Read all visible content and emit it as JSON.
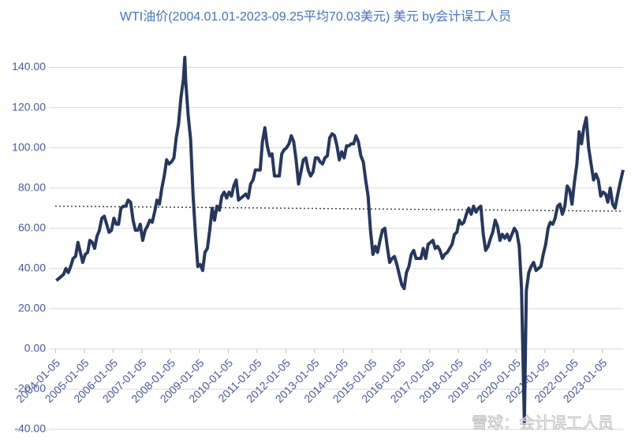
{
  "chart_data": {
    "type": "line",
    "title": "WTI油价(2004.01.01-2023-09.25平均70.03美元) 美元   by会计误工人员",
    "watermark": "雪球：会计误工人员",
    "x": [
      "2004-01",
      "2004-02",
      "2004-03",
      "2004-04",
      "2004-05",
      "2004-06",
      "2004-07",
      "2004-08",
      "2004-09",
      "2004-10",
      "2004-11",
      "2004-12",
      "2005-01",
      "2005-02",
      "2005-03",
      "2005-04",
      "2005-05",
      "2005-06",
      "2005-07",
      "2005-08",
      "2005-09",
      "2005-10",
      "2005-11",
      "2005-12",
      "2006-01",
      "2006-02",
      "2006-03",
      "2006-04",
      "2006-05",
      "2006-06",
      "2006-07",
      "2006-08",
      "2006-09",
      "2006-10",
      "2006-11",
      "2006-12",
      "2007-01",
      "2007-02",
      "2007-03",
      "2007-04",
      "2007-05",
      "2007-06",
      "2007-07",
      "2007-08",
      "2007-09",
      "2007-10",
      "2007-11",
      "2007-12",
      "2008-01",
      "2008-02",
      "2008-03",
      "2008-04",
      "2008-05",
      "2008-06",
      "2008-07-03",
      "2008-07",
      "2008-08",
      "2008-09",
      "2008-10",
      "2008-11",
      "2008-12",
      "2009-01",
      "2009-02",
      "2009-03",
      "2009-04",
      "2009-05",
      "2009-06",
      "2009-07",
      "2009-08",
      "2009-09",
      "2009-10",
      "2009-11",
      "2009-12",
      "2010-01",
      "2010-02",
      "2010-03",
      "2010-04",
      "2010-05",
      "2010-06",
      "2010-07",
      "2010-08",
      "2010-09",
      "2010-10",
      "2010-11",
      "2010-12",
      "2011-01",
      "2011-02",
      "2011-03",
      "2011-04",
      "2011-05",
      "2011-06",
      "2011-07",
      "2011-08",
      "2011-09",
      "2011-10",
      "2011-11",
      "2011-12",
      "2012-01",
      "2012-02",
      "2012-03",
      "2012-04",
      "2012-05",
      "2012-06",
      "2012-07",
      "2012-08",
      "2012-09",
      "2012-10",
      "2012-11",
      "2012-12",
      "2013-01",
      "2013-02",
      "2013-03",
      "2013-04",
      "2013-05",
      "2013-06",
      "2013-07",
      "2013-08",
      "2013-09",
      "2013-10",
      "2013-11",
      "2013-12",
      "2014-01",
      "2014-02",
      "2014-03",
      "2014-04",
      "2014-05",
      "2014-06",
      "2014-07",
      "2014-08",
      "2014-09",
      "2014-10",
      "2014-11",
      "2014-12",
      "2015-01",
      "2015-02",
      "2015-03",
      "2015-04",
      "2015-05",
      "2015-06",
      "2015-07",
      "2015-08",
      "2015-09",
      "2015-10",
      "2015-11",
      "2015-12",
      "2016-01",
      "2016-02",
      "2016-03",
      "2016-04",
      "2016-05",
      "2016-06",
      "2016-07",
      "2016-08",
      "2016-09",
      "2016-10",
      "2016-11",
      "2016-12",
      "2017-01",
      "2017-02",
      "2017-03",
      "2017-04",
      "2017-05",
      "2017-06",
      "2017-07",
      "2017-08",
      "2017-09",
      "2017-10",
      "2017-11",
      "2017-12",
      "2018-01",
      "2018-02",
      "2018-03",
      "2018-04",
      "2018-05",
      "2018-06",
      "2018-07",
      "2018-08",
      "2018-09",
      "2018-10",
      "2018-11",
      "2018-12",
      "2019-01",
      "2019-02",
      "2019-03",
      "2019-04",
      "2019-05",
      "2019-06",
      "2019-07",
      "2019-08",
      "2019-09",
      "2019-10",
      "2019-11",
      "2019-12",
      "2020-01",
      "2020-02",
      "2020-03",
      "2020-04-20",
      "2020-05",
      "2020-06",
      "2020-07",
      "2020-08",
      "2020-09",
      "2020-10",
      "2020-11",
      "2020-12",
      "2021-01",
      "2021-02",
      "2021-03",
      "2021-04",
      "2021-05",
      "2021-06",
      "2021-07",
      "2021-08",
      "2021-09",
      "2021-10",
      "2021-11",
      "2021-12",
      "2022-01",
      "2022-02",
      "2022-03",
      "2022-04",
      "2022-05",
      "2022-06",
      "2022-07",
      "2022-08",
      "2022-09",
      "2022-10",
      "2022-11",
      "2022-12",
      "2023-01",
      "2023-02",
      "2023-03",
      "2023-04",
      "2023-05",
      "2023-06",
      "2023-07",
      "2023-08",
      "2023-09-25"
    ],
    "series": [
      {
        "color": "#26375f",
        "values": [
          34,
          35,
          36,
          37,
          40,
          38,
          41,
          45,
          46,
          53,
          48,
          43,
          47,
          48,
          54,
          53,
          50,
          56,
          59,
          65,
          66,
          62,
          58,
          59,
          65,
          62,
          62,
          70,
          71,
          71,
          74,
          73,
          64,
          59,
          59,
          62,
          54,
          59,
          61,
          64,
          63,
          68,
          74,
          72,
          80,
          86,
          94,
          92,
          93,
          95,
          105,
          112,
          125,
          134,
          145,
          133,
          116,
          104,
          77,
          57,
          41,
          42,
          39,
          48,
          50,
          59,
          70,
          64,
          71,
          69,
          76,
          78,
          75,
          78,
          76,
          81,
          84,
          74,
          75,
          76,
          77,
          75,
          82,
          84,
          89,
          89,
          89,
          103,
          110,
          101,
          96,
          97,
          86,
          86,
          86,
          97,
          99,
          100,
          102,
          106,
          103,
          94,
          82,
          88,
          94,
          95,
          89,
          86,
          88,
          95,
          95,
          93,
          92,
          95,
          96,
          105,
          107,
          106,
          101,
          94,
          98,
          95,
          101,
          101,
          102,
          102,
          106,
          103,
          96,
          93,
          84,
          76,
          59,
          47,
          51,
          48,
          54,
          59,
          60,
          51,
          43,
          45,
          46,
          42,
          37,
          32,
          30,
          38,
          41,
          47,
          49,
          45,
          45,
          45,
          50,
          45,
          52,
          53,
          54,
          50,
          51,
          49,
          45,
          47,
          48,
          50,
          52,
          57,
          58,
          64,
          62,
          63,
          67,
          70,
          67,
          71,
          68,
          70,
          71,
          57,
          49,
          51,
          55,
          58,
          64,
          61,
          54,
          57,
          55,
          57,
          54,
          57,
          60,
          58,
          51,
          30,
          -37,
          29,
          38,
          41,
          43,
          39,
          40,
          41,
          47,
          52,
          60,
          63,
          62,
          65,
          71,
          72,
          67,
          71,
          81,
          79,
          72,
          83,
          92,
          108,
          102,
          110,
          115,
          100,
          92,
          84,
          87,
          84,
          76,
          78,
          77,
          73,
          80,
          72,
          70,
          76,
          82,
          89
        ]
      }
    ],
    "trend": {
      "color": "#404040",
      "start": 71,
      "end": 68.5
    },
    "xlim": [
      "2004-01-01",
      "2023-09-25"
    ],
    "xticks": [
      "2004-01-05",
      "2005-01-05",
      "2006-01-05",
      "2007-01-05",
      "2008-01-05",
      "2009-01-05",
      "2010-01-05",
      "2011-01-05",
      "2012-01-05",
      "2013-01-05",
      "2014-01-05",
      "2015-01-05",
      "2016-01-05",
      "2017-01-05",
      "2018-01-05",
      "2019-01-05",
      "2020-01-05",
      "2021-01-05",
      "2022-01-05",
      "2023-01-05"
    ],
    "ylim": [
      -40,
      150
    ],
    "yticks": [
      {
        "value": -40,
        "label": "-40.00"
      },
      {
        "value": -20,
        "label": "-20.00"
      },
      {
        "value": 0,
        "label": "0.00"
      },
      {
        "value": 20,
        "label": "20.00"
      },
      {
        "value": 40,
        "label": "40.00"
      },
      {
        "value": 60,
        "label": "60.00"
      },
      {
        "value": 80,
        "label": "80.00"
      },
      {
        "value": 100,
        "label": "100.00"
      },
      {
        "value": 120,
        "label": "120.00"
      },
      {
        "value": 140,
        "label": "140.00"
      }
    ],
    "grid": true
  }
}
